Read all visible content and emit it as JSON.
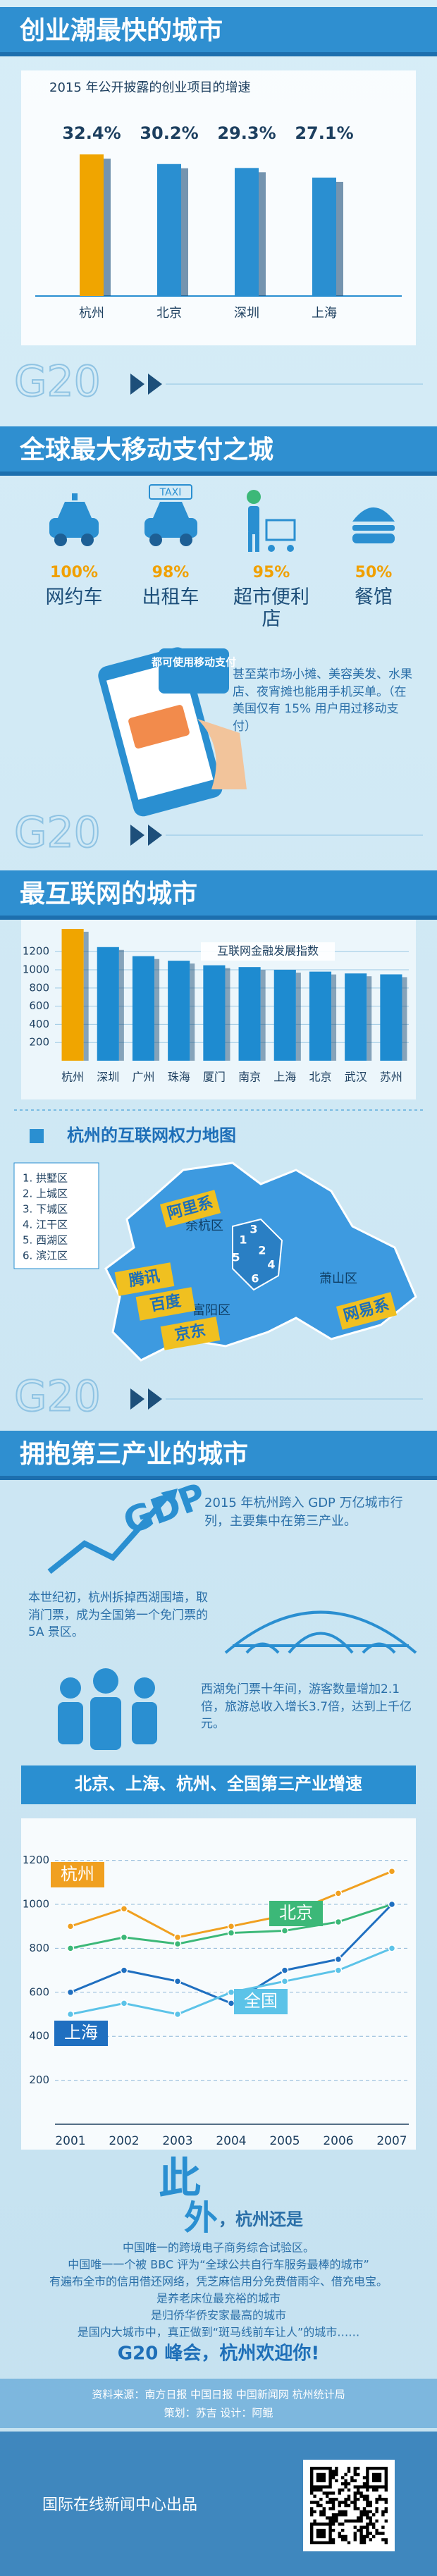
{
  "headers": [
    "创业潮最快的城市",
    "全球最大移动支付之城",
    "最互联网的城市",
    "拥抱第三产业的城市"
  ],
  "g20_mark": "G20",
  "payment": {
    "items": [
      {
        "percent": "100%",
        "label": "网约车"
      },
      {
        "percent": "98%",
        "label": "出租车"
      },
      {
        "percent": "95%",
        "label": "超市便利店"
      },
      {
        "percent": "50%",
        "label": "餐馆"
      }
    ],
    "taxi_sign": "TAXI",
    "phone_text": "都可使用移动支付",
    "note": "甚至菜市场小摊、美容美发、水果店、夜宵摊也能用手机买单。（在美国仅有 15% 用户用过移动支付）"
  },
  "map": {
    "title": "杭州的互联网权力地图",
    "districts": [
      "1. 拱墅区",
      "2. 上城区",
      "3. 下城区",
      "4. 江干区",
      "5. 西湖区",
      "6. 滨江区"
    ],
    "numbers": [
      "1",
      "2",
      "3",
      "4",
      "5",
      "6"
    ],
    "areas": [
      "余杭区",
      "萧山区",
      "富阳区"
    ],
    "companies": [
      "阿里系",
      "腾讯",
      "百度",
      "京东",
      "网易系"
    ]
  },
  "tertiary": {
    "gdp_logo": "GDP",
    "gdp_text": "2015 年杭州跨入 GDP 万亿城市行列，主要集中在第三产业。",
    "west_lake_text": "本世纪初，杭州拆掉西湖围墙，取消门票，成为全国第一个免门票的 5A 景区。",
    "tourism_text": "西湖免门票十年间，游客数量增加2.1倍，旅游总收入增长3.7倍，达到上千亿元。"
  },
  "also": {
    "title_1": "此",
    "title_2": "外",
    "title_3": "，杭州还是",
    "lines": [
      "中国唯一的跨境电子商务综合试验区。",
      "中国唯一一个被 BBC 评为“全球公共自行车服务最棒的城市”",
      "有遍布全市的信用借还网络，凭芝麻信用分免费借雨伞、借充电宝。",
      "是养老床位最充裕的城市",
      "是归侨华侨安家最高的城市",
      "是国内大城市中，真正做到“斑马线前车让人”的城市……"
    ],
    "slogan": "G20 峰会，杭州欢迎你!"
  },
  "footer": {
    "sources": "资料来源：南方日报 中国日报 中国新闻网 杭州统计局",
    "credits": "策划：苏吉  设计：阿鲲",
    "publisher": "国际在线新闻中心出品"
  },
  "chart_data": [
    {
      "type": "bar",
      "title": "2015 年公开披露的创业项目的增速",
      "categories": [
        "杭州",
        "北京",
        "深圳",
        "上海"
      ],
      "values": [
        32.4,
        30.2,
        29.3,
        27.1
      ],
      "value_labels": [
        "32.4%",
        "30.2%",
        "29.3%",
        "27.1%"
      ],
      "colors": [
        "#f0a500",
        "#2a8fd1",
        "#2a8fd1",
        "#2a8fd1"
      ]
    },
    {
      "type": "bar",
      "title": "互联网金融发展指数",
      "categories": [
        "杭州",
        "深圳",
        "广州",
        "珠海",
        "厦门",
        "南京",
        "上海",
        "北京",
        "武汉",
        "苏州"
      ],
      "values": [
        1450,
        1250,
        1150,
        1100,
        1050,
        1030,
        1000,
        980,
        960,
        950
      ],
      "colors": [
        "#f0a500",
        "#1e8bd0",
        "#1e8bd0",
        "#1e8bd0",
        "#1e8bd0",
        "#1e8bd0",
        "#1e8bd0",
        "#1e8bd0",
        "#1e8bd0",
        "#1e8bd0"
      ],
      "ylim": [
        0,
        1450
      ],
      "yticks": [
        200,
        400,
        600,
        800,
        1000,
        1200
      ],
      "grid": true
    },
    {
      "type": "line",
      "title": "北京、上海、杭州、全国第三产业增速",
      "categories": [
        "2001",
        "2002",
        "2003",
        "2004",
        "2005",
        "2006",
        "2007"
      ],
      "series": [
        {
          "name": "杭州",
          "color": "#f0a020",
          "values": [
            900,
            980,
            850,
            900,
            950,
            1050,
            1150
          ]
        },
        {
          "name": "北京",
          "color": "#3cb878",
          "values": [
            800,
            850,
            820,
            870,
            880,
            920,
            1000
          ]
        },
        {
          "name": "上海",
          "color": "#1f6fc0",
          "values": [
            600,
            700,
            650,
            550,
            700,
            750,
            1000
          ]
        },
        {
          "name": "全国",
          "color": "#5cc3e8",
          "values": [
            500,
            550,
            500,
            600,
            650,
            700,
            800
          ]
        }
      ],
      "ylim": [
        0,
        1250
      ],
      "yticks": [
        200,
        400,
        600,
        800,
        1000,
        1200
      ],
      "grid": true
    }
  ]
}
